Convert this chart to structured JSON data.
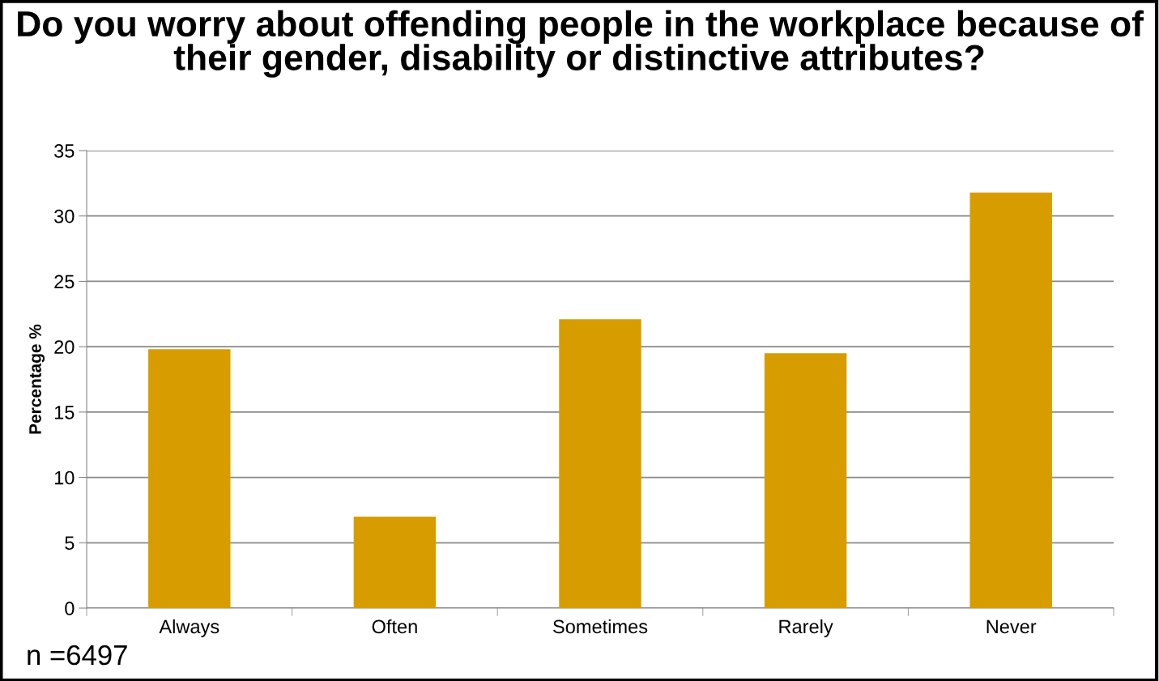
{
  "chart_data": {
    "type": "bar",
    "title": "Do you worry about offending people in the workplace because of their gender, disability or distinctive attributes?",
    "ylabel": "Percentage %",
    "categories": [
      "Always",
      "Often",
      "Sometimes",
      "Rarely",
      "Never"
    ],
    "values": [
      19.8,
      7.0,
      22.1,
      19.5,
      31.8
    ],
    "color": "#d79d00",
    "ylim": [
      0,
      35
    ],
    "yticks": [
      0,
      5,
      10,
      15,
      20,
      25,
      30,
      35
    ],
    "grid": "y",
    "legend": false,
    "annotations": [
      "n =6497"
    ]
  }
}
